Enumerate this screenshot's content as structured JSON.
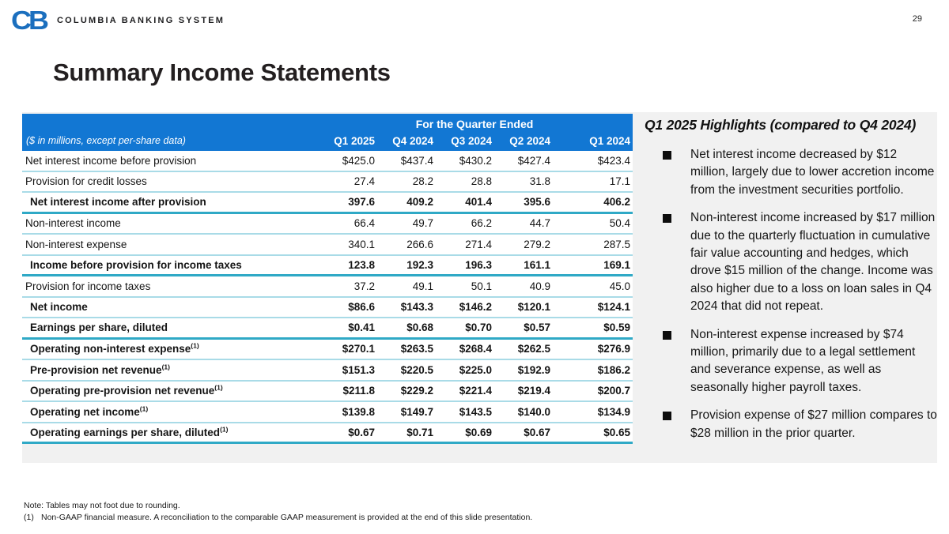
{
  "page_number": "29",
  "logo": {
    "monogram": "CB",
    "company": "COLUMBIA BANKING SYSTEM"
  },
  "title": "Summary Income Statements",
  "colors": {
    "header_blue": "#1277d3",
    "thin_line": "#a9dbe7",
    "thick_line": "#2fa9c6",
    "logo_blue": "#1b6fbe"
  },
  "table": {
    "caption": "For the Quarter Ended",
    "unit_label": "($ in millions, except per-share data)",
    "columns": [
      "Q1 2025",
      "Q4 2024",
      "Q3 2024",
      "Q2 2024",
      "Q1 2024"
    ],
    "rows": [
      {
        "label": "Net interest income before provision",
        "footnote": "",
        "values": [
          "$425.0",
          "$437.4",
          "$430.2",
          "$427.4",
          "$423.4"
        ],
        "bold": false,
        "sep": "thin"
      },
      {
        "label": "Provision for credit losses",
        "footnote": "",
        "values": [
          "27.4",
          "28.2",
          "28.8",
          "31.8",
          "17.1"
        ],
        "bold": false,
        "sep": "thin"
      },
      {
        "label": "Net interest income after provision",
        "footnote": "",
        "values": [
          "397.6",
          "409.2",
          "401.4",
          "395.6",
          "406.2"
        ],
        "bold": true,
        "sep": "thick"
      },
      {
        "label": "Non-interest income",
        "footnote": "",
        "values": [
          "66.4",
          "49.7",
          "66.2",
          "44.7",
          "50.4"
        ],
        "bold": false,
        "sep": "thin"
      },
      {
        "label": "Non-interest expense",
        "footnote": "",
        "values": [
          "340.1",
          "266.6",
          "271.4",
          "279.2",
          "287.5"
        ],
        "bold": false,
        "sep": "thin"
      },
      {
        "label": "Income before provision for income taxes",
        "footnote": "",
        "values": [
          "123.8",
          "192.3",
          "196.3",
          "161.1",
          "169.1"
        ],
        "bold": true,
        "sep": "thick"
      },
      {
        "label": "Provision for income taxes",
        "footnote": "",
        "values": [
          "37.2",
          "49.1",
          "50.1",
          "40.9",
          "45.0"
        ],
        "bold": false,
        "sep": "thin"
      },
      {
        "label": "Net income",
        "footnote": "",
        "values": [
          "$86.6",
          "$143.3",
          "$146.2",
          "$120.1",
          "$124.1"
        ],
        "bold": true,
        "sep": "thin"
      },
      {
        "label": "Earnings per share, diluted",
        "footnote": "",
        "values": [
          "$0.41",
          "$0.68",
          "$0.70",
          "$0.57",
          "$0.59"
        ],
        "bold": true,
        "sep": "thick"
      },
      {
        "label": "Operating non-interest expense",
        "footnote": "(1)",
        "values": [
          "$270.1",
          "$263.5",
          "$268.4",
          "$262.5",
          "$276.9"
        ],
        "bold": true,
        "sep": "thin"
      },
      {
        "label": "Pre-provision net revenue",
        "footnote": "(1)",
        "values": [
          "$151.3",
          "$220.5",
          "$225.0",
          "$192.9",
          "$186.2"
        ],
        "bold": true,
        "sep": "thin"
      },
      {
        "label": "Operating pre-provision net revenue",
        "footnote": "(1)",
        "values": [
          "$211.8",
          "$229.2",
          "$221.4",
          "$219.4",
          "$200.7"
        ],
        "bold": true,
        "sep": "thin"
      },
      {
        "label": "Operating net income",
        "footnote": "(1)",
        "values": [
          "$139.8",
          "$149.7",
          "$143.5",
          "$140.0",
          "$134.9"
        ],
        "bold": true,
        "sep": "thin"
      },
      {
        "label": "Operating earnings per share, diluted",
        "footnote": "(1)",
        "values": [
          "$0.67",
          "$0.71",
          "$0.69",
          "$0.67",
          "$0.65"
        ],
        "bold": true,
        "sep": "thick"
      }
    ]
  },
  "highlights": {
    "title": "Q1 2025 Highlights (compared to Q4 2024)",
    "bullets": [
      "Net interest income decreased by $12 million, largely due to lower accretion income from the investment securities portfolio.",
      "Non-interest income increased by $17 million due to the quarterly fluctuation in cumulative fair value accounting and hedges, which drove $15 million of the change. Income was also higher due to a loss on loan sales in Q4 2024 that did not repeat.",
      "Non-interest expense increased by $74 million, primarily due to a legal settlement and severance expense, as well as seasonally higher payroll taxes.",
      "Provision expense of $27 million compares to $28 million in the prior quarter."
    ]
  },
  "footnotes": {
    "note": "Note: Tables may not foot due to rounding.",
    "items": [
      {
        "marker": "(1)",
        "text": "Non-GAAP financial measure.  A reconciliation to the comparable GAAP measurement is provided at the end of this slide presentation."
      }
    ]
  }
}
